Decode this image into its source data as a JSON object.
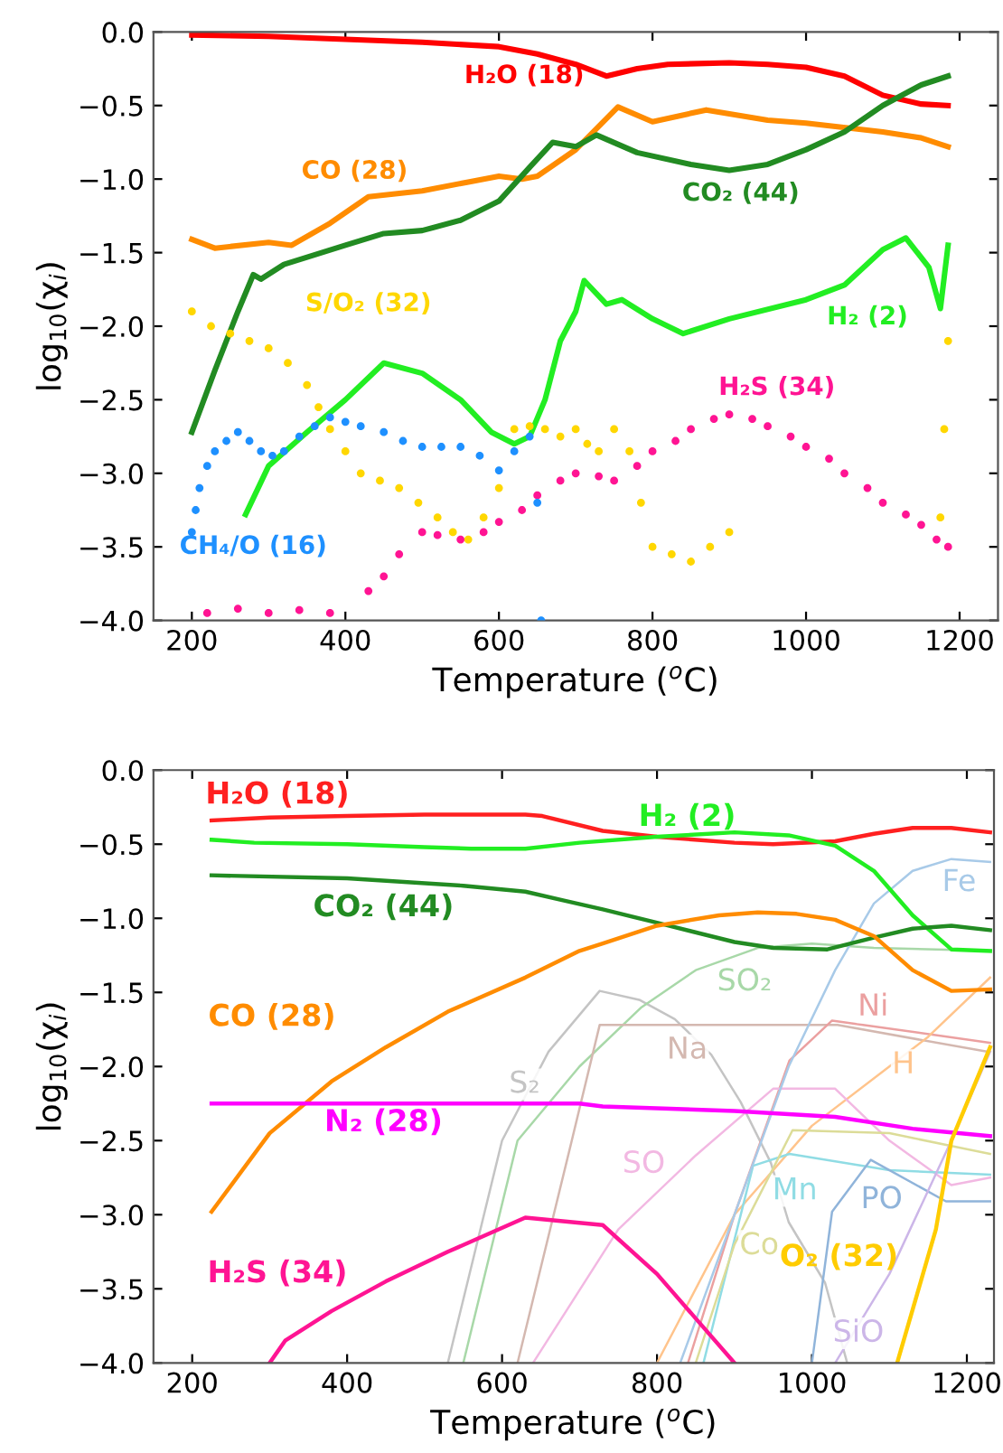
{
  "chart_data": [
    {
      "type": "line",
      "xlabel": "Temperature ($^{o}$C)",
      "ylabel": "log$_{10}$(χ$_{i}$)",
      "xlim": [
        150,
        1250
      ],
      "ylim": [
        -4.0,
        0.0
      ],
      "xticks": [
        200,
        400,
        600,
        800,
        1000,
        1200
      ],
      "yticks": [
        {
          "value": -4.0,
          "label": "−4.0"
        },
        {
          "value": -3.5,
          "label": "−3.5"
        },
        {
          "value": -3.0,
          "label": "−3.0"
        },
        {
          "value": -2.5,
          "label": "−2.5"
        },
        {
          "value": -2.0,
          "label": "−2.0"
        },
        {
          "value": -1.5,
          "label": "−1.5"
        },
        {
          "value": -1.0,
          "label": "−1.0"
        },
        {
          "value": -0.5,
          "label": "−0.5"
        },
        {
          "value": 0.0,
          "label": "0.0"
        }
      ],
      "grid": false,
      "series": [
        {
          "name": "H₂O (18)",
          "type": "line",
          "color": "#ff0000",
          "x": [
            200,
            300,
            400,
            500,
            600,
            650,
            700,
            740,
            780,
            820,
            900,
            950,
            1000,
            1050,
            1100,
            1150,
            1185
          ],
          "values": [
            -0.02,
            -0.03,
            -0.05,
            -0.07,
            -0.1,
            -0.15,
            -0.22,
            -0.3,
            -0.25,
            -0.22,
            -0.21,
            -0.22,
            -0.24,
            -0.3,
            -0.43,
            -0.49,
            -0.5
          ]
        },
        {
          "name": "CO (28)",
          "type": "line",
          "color": "#ff8c00",
          "x": [
            200,
            230,
            300,
            330,
            380,
            430,
            500,
            560,
            600,
            630,
            650,
            700,
            755,
            800,
            870,
            950,
            1000,
            1100,
            1150,
            1185
          ],
          "values": [
            -1.41,
            -1.47,
            -1.43,
            -1.45,
            -1.3,
            -1.12,
            -1.08,
            -1.02,
            -0.98,
            -1.0,
            -0.98,
            -0.8,
            -0.51,
            -0.61,
            -0.53,
            -0.6,
            -0.62,
            -0.68,
            -0.72,
            -0.78
          ]
        },
        {
          "name": "CO₂ (44)",
          "type": "line",
          "color": "#228b22",
          "x": [
            200,
            230,
            260,
            280,
            290,
            320,
            400,
            450,
            500,
            550,
            600,
            640,
            670,
            700,
            727,
            780,
            850,
            900,
            950,
            1000,
            1050,
            1100,
            1150,
            1185
          ],
          "values": [
            -2.72,
            -2.3,
            -1.9,
            -1.65,
            -1.68,
            -1.58,
            -1.45,
            -1.37,
            -1.35,
            -1.28,
            -1.15,
            -0.92,
            -0.75,
            -0.78,
            -0.7,
            -0.82,
            -0.9,
            -0.94,
            -0.9,
            -0.8,
            -0.68,
            -0.5,
            -0.36,
            -0.3
          ]
        },
        {
          "name": "H₂ (2)",
          "type": "line",
          "color": "#22ee22",
          "x": [
            270,
            300,
            350,
            400,
            450,
            500,
            550,
            590,
            620,
            640,
            660,
            680,
            700,
            711,
            740,
            760,
            800,
            840,
            900,
            1000,
            1050,
            1100,
            1130,
            1160,
            1175,
            1185
          ],
          "values": [
            -3.28,
            -2.95,
            -2.72,
            -2.5,
            -2.25,
            -2.32,
            -2.5,
            -2.72,
            -2.8,
            -2.75,
            -2.5,
            -2.1,
            -1.9,
            -1.69,
            -1.85,
            -1.82,
            -1.95,
            -2.05,
            -1.95,
            -1.82,
            -1.72,
            -1.48,
            -1.4,
            -1.6,
            -1.88,
            -1.45
          ]
        },
        {
          "name": "H₂S (34)",
          "type": "scatter",
          "color": "#ff1493",
          "x": [
            220,
            260,
            300,
            340,
            380,
            430,
            450,
            470,
            500,
            520,
            550,
            580,
            600,
            630,
            650,
            680,
            700,
            730,
            750,
            780,
            800,
            830,
            850,
            880,
            900,
            930,
            950,
            980,
            1000,
            1030,
            1050,
            1080,
            1100,
            1130,
            1150,
            1170,
            1185
          ],
          "values": [
            -3.95,
            -3.92,
            -3.95,
            -3.93,
            -3.95,
            -3.8,
            -3.7,
            -3.55,
            -3.4,
            -3.42,
            -3.45,
            -3.4,
            -3.33,
            -3.25,
            -3.15,
            -3.05,
            -3.0,
            -3.02,
            -3.05,
            -2.95,
            -2.85,
            -2.78,
            -2.7,
            -2.63,
            -2.6,
            -2.63,
            -2.68,
            -2.75,
            -2.82,
            -2.9,
            -3.0,
            -3.1,
            -3.2,
            -3.28,
            -3.35,
            -3.45,
            -3.5
          ]
        },
        {
          "name": "CH₄/O (16)",
          "type": "scatter",
          "color": "#1e90ff",
          "x": [
            200,
            205,
            210,
            220,
            230,
            245,
            260,
            275,
            290,
            305,
            320,
            340,
            360,
            380,
            400,
            420,
            450,
            475,
            500,
            525,
            550,
            575,
            600,
            620,
            640,
            650,
            655
          ],
          "values": [
            -3.4,
            -3.25,
            -3.1,
            -2.95,
            -2.85,
            -2.78,
            -2.72,
            -2.78,
            -2.85,
            -2.88,
            -2.85,
            -2.75,
            -2.68,
            -2.62,
            -2.65,
            -2.68,
            -2.72,
            -2.78,
            -2.82,
            -2.82,
            -2.82,
            -2.88,
            -2.98,
            -2.85,
            -2.75,
            -3.2,
            -4.0
          ]
        },
        {
          "name": "S/O₂ (32)",
          "type": "scatter",
          "color": "#ffd700",
          "x": [
            200,
            225,
            250,
            275,
            300,
            325,
            350,
            365,
            380,
            400,
            420,
            445,
            470,
            495,
            520,
            540,
            560,
            580,
            600,
            620,
            640,
            660,
            680,
            700,
            715,
            730,
            750,
            770,
            785,
            800,
            825,
            850,
            875,
            900,
            1000,
            1175,
            1180,
            1185
          ],
          "values": [
            -1.9,
            -2.0,
            -2.05,
            -2.1,
            -2.15,
            -2.25,
            -2.4,
            -2.55,
            -2.7,
            -2.85,
            -3.0,
            -3.05,
            -3.1,
            -3.2,
            -3.3,
            -3.4,
            -3.45,
            -3.3,
            -3.1,
            -2.7,
            -2.68,
            -2.7,
            -2.75,
            -2.7,
            -2.8,
            -2.85,
            -2.7,
            -2.85,
            -3.2,
            -3.5,
            -3.55,
            -3.6,
            -3.5,
            -3.4,
            null,
            -3.3,
            -2.7,
            -2.1
          ]
        }
      ]
    },
    {
      "type": "line",
      "xlabel": "Temperature ($^{o}$C)",
      "ylabel": "log$_{10}$(χ$_{i}$)",
      "xlim": [
        150,
        1235
      ],
      "ylim": [
        -4.0,
        0.0
      ],
      "xticks": [
        200,
        400,
        600,
        800,
        1000,
        1200
      ],
      "yticks": [
        {
          "value": -4.0,
          "label": "−4.0"
        },
        {
          "value": -3.5,
          "label": "−3.5"
        },
        {
          "value": -3.0,
          "label": "−3.0"
        },
        {
          "value": -2.5,
          "label": "−2.5"
        },
        {
          "value": -2.0,
          "label": "−2.0"
        },
        {
          "value": -1.5,
          "label": "−1.5"
        },
        {
          "value": -1.0,
          "label": "−1.0"
        },
        {
          "value": -0.5,
          "label": "−0.5"
        },
        {
          "value": 0.0,
          "label": "0.0"
        }
      ],
      "grid": false,
      "series": [
        {
          "name": "S₂",
          "color": "#c4c4c4",
          "x": [
            530,
            600,
            660,
            726,
            777,
            823,
            870,
            908,
            947,
            970,
            1017,
            1045
          ],
          "values": [
            -4.0,
            -2.5,
            -1.9,
            -1.49,
            -1.55,
            -1.68,
            -1.92,
            -2.24,
            -2.65,
            -3.05,
            -3.46,
            -3.99
          ]
        },
        {
          "name": "SO₂",
          "color": "#a8d8a8",
          "x": [
            550,
            620,
            700,
            780,
            850,
            930,
            1000,
            1080,
            1230
          ],
          "values": [
            -4.0,
            -2.5,
            -2.0,
            -1.6,
            -1.35,
            -1.2,
            -1.17,
            -1.2,
            -1.22
          ]
        },
        {
          "name": "Na",
          "color": "#d4b8b0",
          "x": [
            620,
            690,
            726,
            1033,
            1226
          ],
          "values": [
            -4.0,
            -2.5,
            -1.72,
            -1.72,
            -1.9
          ]
        },
        {
          "name": "Ni",
          "color": "#eba0a0",
          "x": [
            840,
            900,
            971,
            1026,
            1230
          ],
          "values": [
            -4.0,
            -3.0,
            -1.96,
            -1.69,
            -1.84
          ]
        },
        {
          "name": "H",
          "color": "#ffc48c",
          "x": [
            800,
            900,
            1000,
            1100,
            1150,
            1230
          ],
          "values": [
            -4.0,
            -3.0,
            -2.4,
            -2.0,
            -1.8,
            -1.4
          ]
        },
        {
          "name": "SO",
          "color": "#f2b8e2",
          "x": [
            640,
            750,
            850,
            950,
            1030,
            1100,
            1180,
            1230
          ],
          "values": [
            -4.0,
            -3.1,
            -2.6,
            -2.15,
            -2.15,
            -2.5,
            -2.8,
            -2.75
          ]
        },
        {
          "name": "Mn",
          "color": "#90dce4",
          "x": [
            860,
            924,
            971,
            1100,
            1230
          ],
          "values": [
            -4.0,
            -2.67,
            -2.59,
            -2.7,
            -2.73
          ]
        },
        {
          "name": "Co",
          "color": "#dcdc98",
          "x": [
            850,
            900,
            975,
            1100,
            1230
          ],
          "values": [
            -4.0,
            -3.2,
            -2.43,
            -2.45,
            -2.59
          ]
        },
        {
          "name": "PO",
          "color": "#90b4da",
          "x": [
            1000,
            1026,
            1076,
            1173,
            1230
          ],
          "values": [
            -4.0,
            -2.98,
            -2.63,
            -2.91,
            -2.91
          ]
        },
        {
          "name": "SiO",
          "color": "#ccb6e8",
          "x": [
            1030,
            1100,
            1180,
            1230
          ],
          "values": [
            -4.0,
            -3.4,
            -2.5,
            -1.9
          ]
        },
        {
          "name": "Fe",
          "color": "#a8cae8",
          "x": [
            830,
            900,
            970,
            1030,
            1080,
            1130,
            1180,
            1230
          ],
          "values": [
            -4.0,
            -3.0,
            -2.0,
            -1.35,
            -0.9,
            -0.68,
            -0.6,
            -0.62
          ]
        },
        {
          "name": "H₂O (18)",
          "color": "#ff2020",
          "x": [
            225,
            300,
            400,
            500,
            580,
            630,
            652,
            730,
            800,
            900,
            950,
            1030,
            1080,
            1130,
            1180,
            1230
          ],
          "values": [
            -0.34,
            -0.32,
            -0.31,
            -0.3,
            -0.3,
            -0.3,
            -0.31,
            -0.41,
            -0.45,
            -0.49,
            -0.5,
            -0.48,
            -0.43,
            -0.39,
            -0.39,
            -0.42
          ]
        },
        {
          "name": "H₂ (2)",
          "color": "#22ee22",
          "x": [
            225,
            280,
            400,
            500,
            560,
            630,
            700,
            800,
            900,
            970,
            1030,
            1080,
            1130,
            1180,
            1230
          ],
          "values": [
            -0.47,
            -0.49,
            -0.5,
            -0.52,
            -0.53,
            -0.53,
            -0.49,
            -0.45,
            -0.42,
            -0.44,
            -0.51,
            -0.68,
            -0.98,
            -1.21,
            -1.22
          ]
        },
        {
          "name": "CO₂ (44)",
          "color": "#228b22",
          "x": [
            225,
            400,
            550,
            630,
            680,
            730,
            800,
            900,
            950,
            1020,
            1080,
            1130,
            1180,
            1230
          ],
          "values": [
            -0.71,
            -0.73,
            -0.78,
            -0.82,
            -0.88,
            -0.94,
            -1.03,
            -1.16,
            -1.2,
            -1.21,
            -1.13,
            -1.07,
            -1.05,
            -1.08
          ]
        },
        {
          "name": "CO (28)",
          "color": "#ff8c00",
          "x": [
            225,
            300,
            380,
            450,
            530,
            630,
            700,
            730,
            800,
            880,
            930,
            980,
            1030,
            1080,
            1130,
            1180,
            1230
          ],
          "values": [
            -2.98,
            -2.45,
            -2.1,
            -1.87,
            -1.63,
            -1.4,
            -1.22,
            -1.17,
            -1.05,
            -0.98,
            -0.96,
            -0.97,
            -1.01,
            -1.12,
            -1.35,
            -1.49,
            -1.48
          ]
        },
        {
          "name": "N₂ (28)",
          "color": "#ff00ff",
          "x": [
            225,
            700,
            730,
            900,
            1030,
            1130,
            1230
          ],
          "values": [
            -2.25,
            -2.25,
            -2.27,
            -2.3,
            -2.34,
            -2.42,
            -2.47
          ]
        },
        {
          "name": "H₂S (34)",
          "color": "#ff1493",
          "x": [
            300,
            320,
            380,
            450,
            530,
            630,
            730,
            800,
            850,
            900
          ],
          "values": [
            -4.0,
            -3.85,
            -3.65,
            -3.45,
            -3.25,
            -3.02,
            -3.07,
            -3.4,
            -3.7,
            -4.0
          ]
        },
        {
          "name": "O₂ (32)",
          "color": "#ffcc00",
          "x": [
            1110,
            1160,
            1180,
            1230
          ],
          "values": [
            -4.0,
            -3.1,
            -2.5,
            -1.87
          ]
        }
      ]
    }
  ]
}
